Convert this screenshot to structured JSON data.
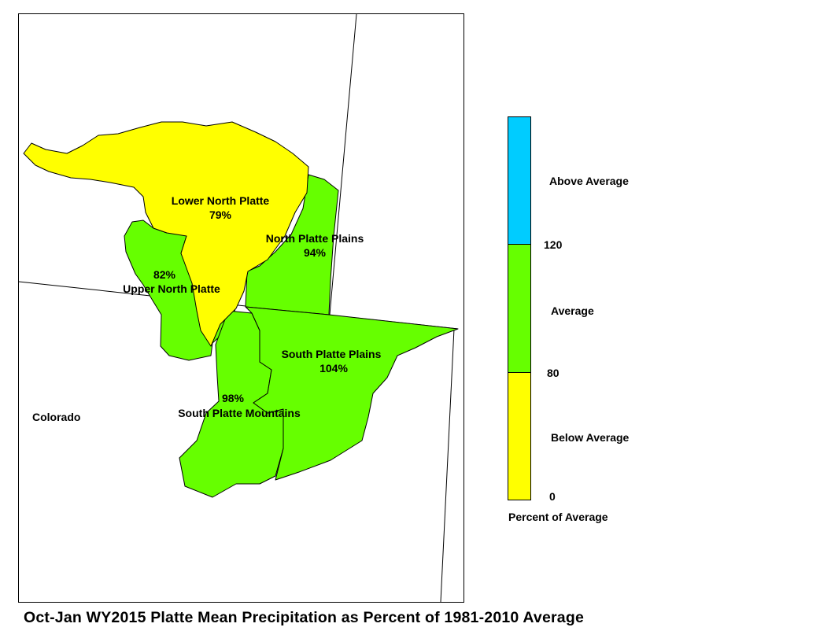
{
  "title": "Oct-Jan WY2015 Platte Mean Precipitation as Percent of 1981-2010 Average",
  "state_label": "Colorado",
  "colors": {
    "below": "#ffff00",
    "average": "#66ff00",
    "above": "#00ccff"
  },
  "basins": [
    {
      "name": "Lower North Platte",
      "percent": "79%",
      "category": "below"
    },
    {
      "name": "North Platte Plains",
      "percent": "94%",
      "category": "average"
    },
    {
      "name": "Upper North Platte",
      "percent": "82%",
      "category": "average"
    },
    {
      "name": "South Platte Plains",
      "percent": "104%",
      "category": "average"
    },
    {
      "name": "South Platte Mountains",
      "percent": "98%",
      "category": "average"
    }
  ],
  "legend": {
    "title": "Percent of Average",
    "classes": [
      {
        "label": "Above Average",
        "min": 120,
        "color": "#00ccff"
      },
      {
        "label": "Average",
        "min": 80,
        "max": 120,
        "color": "#66ff00"
      },
      {
        "label": "Below Average",
        "min": 0,
        "max": 80,
        "color": "#ffff00"
      }
    ],
    "ticks": [
      "120",
      "80",
      "0"
    ]
  }
}
